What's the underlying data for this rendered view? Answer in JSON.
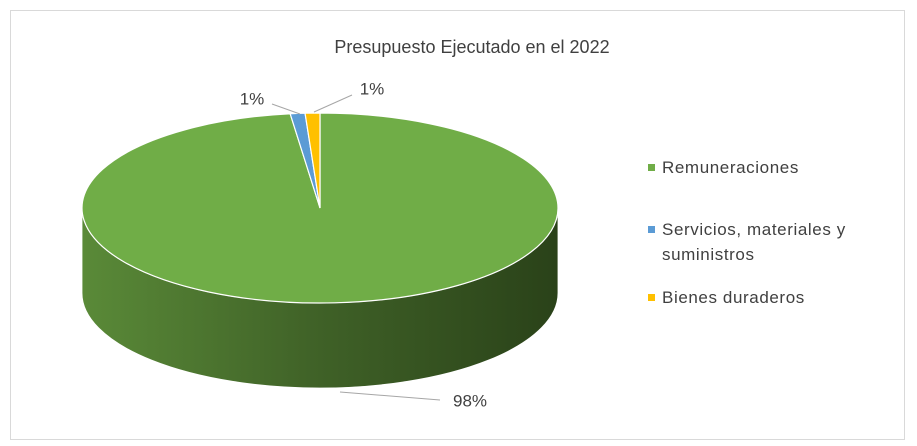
{
  "chart_data": {
    "type": "pie",
    "title": "Presupuesto Ejecutado en el 2022",
    "categories": [
      "Remuneraciones",
      "Servicios, materiales y suministros",
      "Bienes duraderos"
    ],
    "values": [
      98,
      1,
      1
    ],
    "value_labels": [
      "98%",
      "1%",
      "1%"
    ],
    "colors": [
      "#70ad47",
      "#5b9bd5",
      "#ffc000"
    ],
    "legend": "right"
  }
}
